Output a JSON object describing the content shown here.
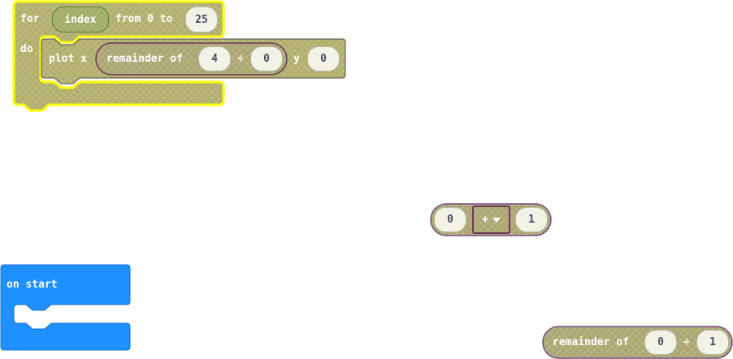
{
  "colors": {
    "loops_fill": "#b7b56a",
    "loops_highlight": "#ffff00",
    "math_fill": "#a9a773",
    "math_border": "#6b3a5d",
    "events_fill": "#1e90ff",
    "number_slot": "#f2f2e6"
  },
  "for_block": {
    "for_label": "for",
    "variable": "index",
    "from_label": "from 0 to",
    "to_value": "25",
    "do_label": "do"
  },
  "plot_block": {
    "label": "plot x",
    "remainder_label": "remainder of",
    "dividend": "4",
    "divide_symbol": "÷",
    "divisor": "0",
    "y_label": "y",
    "y_value": "0"
  },
  "arith_block": {
    "left": "0",
    "operator": "+",
    "right": "1"
  },
  "on_start_block": {
    "label": "on start"
  },
  "remainder_block": {
    "label": "remainder of",
    "dividend": "0",
    "divide_symbol": "÷",
    "divisor": "1"
  }
}
